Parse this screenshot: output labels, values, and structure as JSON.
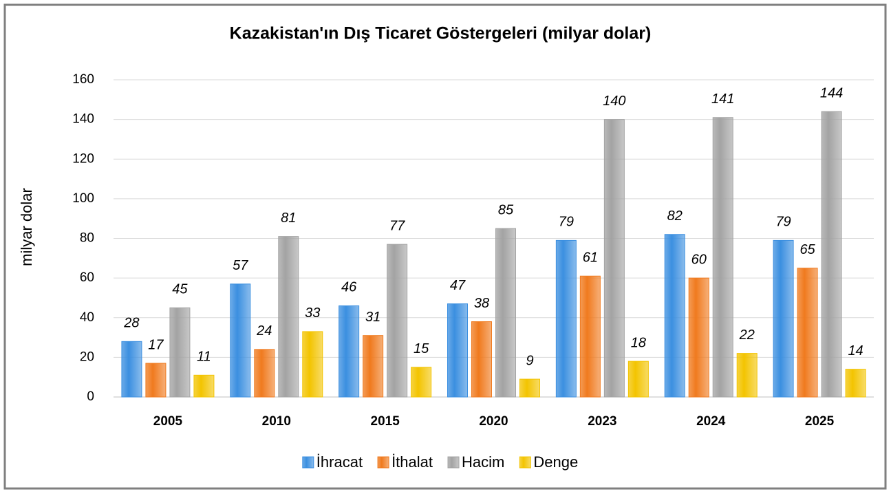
{
  "chart_data": {
    "type": "bar",
    "title": "Kazakistan'ın Dış Ticaret Göstergeleri (milyar dolar)",
    "ylabel": "milyar dolar",
    "categories": [
      "2005",
      "2010",
      "2015",
      "2020",
      "2023",
      "2024",
      "2025"
    ],
    "series": [
      {
        "name": "İhracat",
        "color": "#3b8fe0",
        "values": [
          28,
          57,
          46,
          47,
          79,
          82,
          79
        ]
      },
      {
        "name": "İthalat",
        "color": "#f07a1e",
        "values": [
          17,
          24,
          31,
          38,
          61,
          60,
          65
        ]
      },
      {
        "name": "Hacim",
        "color": "#a3a3a3",
        "values": [
          45,
          81,
          77,
          85,
          140,
          141,
          144
        ]
      },
      {
        "name": "Denge",
        "color": "#f3c400",
        "values": [
          11,
          33,
          15,
          9,
          18,
          22,
          14
        ]
      }
    ],
    "ylim": [
      0,
      160
    ],
    "yticks": [
      0,
      20,
      40,
      60,
      80,
      100,
      120,
      140,
      160
    ],
    "grid": true,
    "legend": "bottom"
  }
}
